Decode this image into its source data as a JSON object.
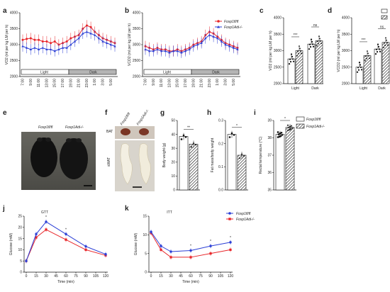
{
  "panels": {
    "a": {
      "letter": "a",
      "ylabel": "VO2 (ml per kg LM per h)",
      "yticks": [
        "4000",
        "3500",
        "3000",
        "2500",
        "2000"
      ],
      "xticks": [
        "7:00",
        "9:00",
        "11:00",
        "13:00",
        "15:00",
        "17:00",
        "19:00",
        "21:00",
        "23:00",
        "1:00",
        "3:00",
        "5:00"
      ],
      "light_label": "Light",
      "dark_label": "Dark"
    },
    "b": {
      "letter": "b",
      "ylabel": "VCO2 (ml per kg LM per h)",
      "yticks": [
        "4000",
        "3500",
        "3000",
        "2500",
        "2000"
      ],
      "xticks": [
        "7:00",
        "9:00",
        "11:00",
        "13:00",
        "15:00",
        "17:00",
        "19:00",
        "21:00",
        "23:00",
        "1:00",
        "3:00",
        "5:00"
      ],
      "light_label": "Light",
      "dark_label": "Dark",
      "legend": [
        "Foxp1fl/fl",
        "Foxp1Adi-/-"
      ]
    },
    "c": {
      "letter": "c",
      "ylabel": "VO2 (ml per kg LM per h)",
      "yticks": [
        "4000",
        "3500",
        "3000",
        "2500",
        "2000"
      ],
      "groups": [
        "Light",
        "Dark"
      ],
      "sig": [
        "***",
        "ns"
      ]
    },
    "d": {
      "letter": "d",
      "ylabel": "VCO2 (ml per kg LM per h)",
      "yticks": [
        "4000",
        "3500",
        "3000",
        "2500",
        "2000"
      ],
      "groups": [
        "Light",
        "Dark"
      ],
      "sig": [
        "***",
        "ns"
      ]
    },
    "e": {
      "letter": "e",
      "labels": [
        "Foxp1fl/fl",
        "Foxp1Adi-/-"
      ]
    },
    "f": {
      "letter": "f",
      "tissues": [
        "BAT",
        "sWAT"
      ],
      "labels": [
        "Foxp1fl/fl",
        "Foxp1Adi-/-"
      ]
    },
    "g": {
      "letter": "g",
      "ylabel": "Body weight (g)",
      "yticks": [
        "50",
        "40",
        "30",
        "20",
        "10",
        "0"
      ],
      "sig": "**"
    },
    "h": {
      "letter": "h",
      "ylabel": "Fat mass/body weight",
      "yticks": [
        "0.3",
        "0.2",
        "0.1",
        "0.0"
      ],
      "sig": "*"
    },
    "i": {
      "letter": "i",
      "ylabel": "Rectal temperature (°C)",
      "yticks": [
        "39",
        "38",
        "37",
        "36",
        "35"
      ],
      "sig": "*",
      "legend": [
        "Foxp1fl/fl",
        "Foxp1Adi-/-"
      ]
    },
    "j": {
      "letter": "j",
      "title": "GTT",
      "ylabel": "Glucose (mM)",
      "xlabel": "Time (min)",
      "yticks": [
        "25",
        "20",
        "15",
        "10",
        "5",
        "0"
      ],
      "xticks": [
        "0",
        "15",
        "30",
        "45",
        "60",
        "75",
        "90",
        "105",
        "120"
      ]
    },
    "k": {
      "letter": "k",
      "title": "ITT",
      "ylabel": "Glucose (mM)",
      "xlabel": "Time (min)",
      "yticks": [
        "15",
        "10",
        "5",
        "0"
      ],
      "xticks": [
        "0",
        "15",
        "30",
        "45",
        "60",
        "75",
        "90",
        "105",
        "120"
      ],
      "legend": [
        "Foxp1fl/fl",
        "Foxp1Adi-/-"
      ]
    }
  },
  "colors": {
    "control": "#e8262a",
    "ko": "#2b3fd6",
    "gray": "#9a9a9a",
    "black": "#111111"
  },
  "chart_data": [
    {
      "panel": "a",
      "type": "line",
      "ylim": [
        2000,
        4000
      ],
      "x": [
        "7:00",
        "8:00",
        "9:00",
        "10:00",
        "11:00",
        "12:00",
        "13:00",
        "14:00",
        "15:00",
        "16:00",
        "17:00",
        "18:00",
        "19:00",
        "20:00",
        "21:00",
        "22:00",
        "23:00",
        "0:00",
        "1:00",
        "2:00",
        "3:00",
        "4:00",
        "5:00",
        "6:00"
      ],
      "series": [
        {
          "name": "Foxp1fl/fl",
          "values": [
            3150,
            3180,
            3200,
            3150,
            3150,
            3100,
            3100,
            3050,
            3100,
            3000,
            3050,
            3100,
            3200,
            3250,
            3300,
            3500,
            3600,
            3550,
            3400,
            3300,
            3200,
            3150,
            3100,
            3050
          ]
        },
        {
          "name": "Foxp1Adi-/-",
          "values": [
            2950,
            2900,
            2850,
            2900,
            2850,
            2900,
            2850,
            2850,
            2800,
            2850,
            2900,
            2900,
            3000,
            3100,
            3200,
            3350,
            3400,
            3350,
            3300,
            3200,
            3100,
            3050,
            3000,
            2950
          ]
        }
      ]
    },
    {
      "panel": "b",
      "type": "line",
      "ylim": [
        2000,
        4000
      ],
      "x": [
        "7:00",
        "8:00",
        "9:00",
        "10:00",
        "11:00",
        "12:00",
        "13:00",
        "14:00",
        "15:00",
        "16:00",
        "17:00",
        "18:00",
        "19:00",
        "20:00",
        "21:00",
        "22:00",
        "23:00",
        "0:00",
        "1:00",
        "2:00",
        "3:00",
        "4:00",
        "5:00",
        "6:00"
      ],
      "series": [
        {
          "name": "Foxp1fl/fl",
          "values": [
            2950,
            2900,
            2850,
            2900,
            2850,
            2850,
            2800,
            2800,
            2850,
            2800,
            2850,
            2900,
            3000,
            3050,
            3100,
            3300,
            3400,
            3350,
            3250,
            3150,
            3050,
            3000,
            2950,
            2900
          ]
        },
        {
          "name": "Foxp1Adi-/-",
          "values": [
            2850,
            2800,
            2800,
            2850,
            2800,
            2800,
            2750,
            2800,
            2800,
            2750,
            2800,
            2850,
            2950,
            3000,
            3050,
            3200,
            3300,
            3250,
            3200,
            3100,
            3000,
            2950,
            2900,
            2850
          ]
        }
      ]
    },
    {
      "panel": "c",
      "type": "bar",
      "categories": [
        "Light",
        "Dark"
      ],
      "ylim": [
        2000,
        4000
      ],
      "series": [
        {
          "name": "Foxp1fl/fl",
          "values": [
            2750,
            3200
          ]
        },
        {
          "name": "Foxp1Adi-/-",
          "values": [
            3000,
            3300
          ]
        }
      ]
    },
    {
      "panel": "d",
      "type": "bar",
      "categories": [
        "Light",
        "Dark"
      ],
      "ylim": [
        2000,
        4000
      ],
      "series": [
        {
          "name": "Foxp1fl/fl",
          "values": [
            2500,
            3050
          ]
        },
        {
          "name": "Foxp1Adi-/-",
          "values": [
            2850,
            3250
          ]
        }
      ]
    },
    {
      "panel": "g",
      "type": "bar",
      "categories": [
        "Foxp1fl/fl",
        "Foxp1Adi-/-"
      ],
      "values": [
        38.5,
        33
      ],
      "ylim": [
        0,
        50
      ]
    },
    {
      "panel": "h",
      "type": "bar",
      "categories": [
        "Foxp1fl/fl",
        "Foxp1Adi-/-"
      ],
      "values": [
        0.24,
        0.15
      ],
      "ylim": [
        0,
        0.3
      ]
    },
    {
      "panel": "i",
      "type": "bar",
      "categories": [
        "Foxp1fl/fl",
        "Foxp1Adi-/-"
      ],
      "values": [
        38.2,
        38.6
      ],
      "ylim": [
        35,
        39
      ]
    },
    {
      "panel": "j",
      "type": "line",
      "x": [
        0,
        15,
        30,
        60,
        90,
        120
      ],
      "ylim": [
        0,
        25
      ],
      "series": [
        {
          "name": "Foxp1fl/fl",
          "values": [
            5,
            15.5,
            19,
            14.5,
            10,
            7.5
          ]
        },
        {
          "name": "Foxp1Adi-/-",
          "values": [
            5,
            17,
            22.5,
            17,
            11.5,
            8
          ]
        }
      ]
    },
    {
      "panel": "k",
      "type": "line",
      "x": [
        0,
        15,
        30,
        60,
        90,
        120
      ],
      "ylim": [
        0,
        15
      ],
      "series": [
        {
          "name": "Foxp1fl/fl",
          "values": [
            10.5,
            6,
            4,
            4,
            5,
            6
          ]
        },
        {
          "name": "Foxp1Adi-/-",
          "values": [
            10.8,
            7,
            5.5,
            5.8,
            7,
            8
          ]
        }
      ]
    }
  ]
}
